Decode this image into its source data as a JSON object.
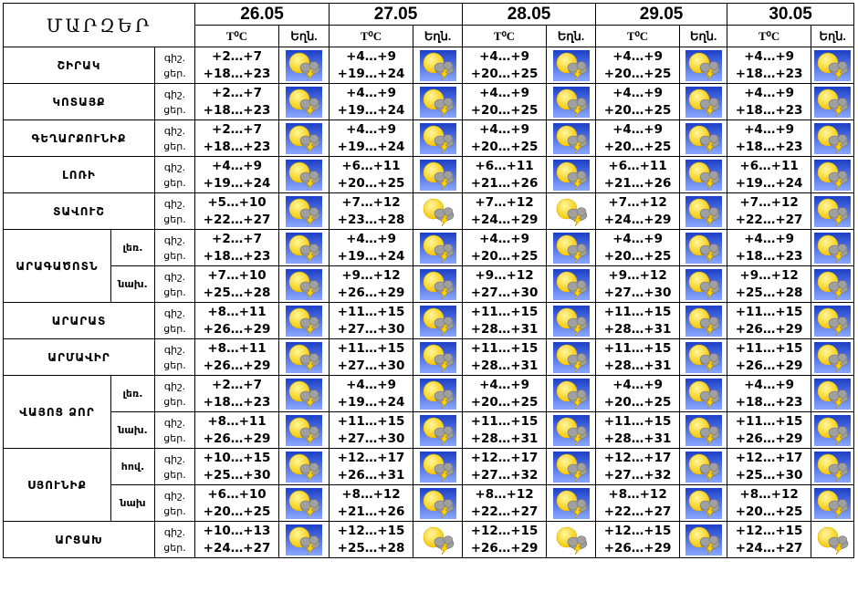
{
  "header": {
    "title": "ՄԱՐԶԵՐ",
    "dates": [
      "26.05",
      "27.05",
      "28.05",
      "29.05",
      "30.05"
    ],
    "temp_label": "T⁰C",
    "wx_label": "Եղն."
  },
  "rows": [
    {
      "region": "ՇԻՐԱԿ",
      "zone": "",
      "night": "գիշ.",
      "day": "ցեր.",
      "temps": [
        [
          "+2…+7",
          "+18…+23"
        ],
        [
          "+4…+9",
          "+19…+24"
        ],
        [
          "+4…+9",
          "+20…+25"
        ],
        [
          "+4…+9",
          "+20…+25"
        ],
        [
          "+4…+9",
          "+18…+23"
        ]
      ],
      "icons": [
        "partly-cloudy-thunder-icon",
        "thunderstorm-icon",
        "thunderstorm-icon",
        "thunderstorm-icon",
        "partly-cloudy-thunder-icon"
      ]
    },
    {
      "region": "ԿՈՏԱՅՔ",
      "zone": "",
      "night": "գիշ.",
      "day": "ցեր.",
      "temps": [
        [
          "+2…+7",
          "+18…+23"
        ],
        [
          "+4…+9",
          "+19…+24"
        ],
        [
          "+4…+9",
          "+20…+25"
        ],
        [
          "+4…+9",
          "+20…+25"
        ],
        [
          "+4…+9",
          "+18…+23"
        ]
      ],
      "icons": [
        "partly-cloudy-thunder-icon",
        "thunderstorm-icon",
        "thunderstorm-icon",
        "thunderstorm-icon",
        "partly-cloudy-thunder-icon"
      ]
    },
    {
      "region": "ԳԵՂԱՐՔՈՒՆԻՔ",
      "zone": "",
      "night": "գիշ.",
      "day": "ցեր.",
      "temps": [
        [
          "+2…+7",
          "+18…+23"
        ],
        [
          "+4…+9",
          "+19…+24"
        ],
        [
          "+4…+9",
          "+20…+25"
        ],
        [
          "+4…+9",
          "+20…+25"
        ],
        [
          "+4…+9",
          "+18…+23"
        ]
      ],
      "icons": [
        "partly-cloudy-thunder-icon",
        "thunderstorm-icon",
        "thunderstorm-icon",
        "thunderstorm-icon",
        "partly-cloudy-thunder-icon"
      ]
    },
    {
      "region": "ԼՈՌԻ",
      "zone": "",
      "night": "գիշ.",
      "day": "ցեր.",
      "temps": [
        [
          "+4…+9",
          "+19…+24"
        ],
        [
          "+6…+11",
          "+20…+25"
        ],
        [
          "+6…+11",
          "+21…+26"
        ],
        [
          "+6…+11",
          "+21…+26"
        ],
        [
          "+6…+11",
          "+19…+24"
        ]
      ],
      "icons": [
        "partly-cloudy-thunder-icon",
        "thunderstorm-icon",
        "thunderstorm-icon",
        "thunderstorm-icon",
        "partly-cloudy-thunder-icon"
      ]
    },
    {
      "region": "ՏԱՎՈՒՇ",
      "zone": "",
      "night": "գիշ.",
      "day": "ցեր.",
      "temps": [
        [
          "+5…+10",
          "+22…+27"
        ],
        [
          "+7…+12",
          "+23…+28"
        ],
        [
          "+7…+12",
          "+24…+29"
        ],
        [
          "+7…+12",
          "+24…+29"
        ],
        [
          "+7…+12",
          "+22…+27"
        ]
      ],
      "icons": [
        "partly-cloudy-thunder-icon",
        "partly-cloudy-thunder-white-icon",
        "partly-cloudy-thunder-white-icon",
        "thunderstorm-icon",
        "partly-cloudy-thunder-icon"
      ]
    },
    {
      "region": "ԱՐԱԳԱԾՈՏՆ",
      "zone": "լեռ.",
      "night": "գիշ.",
      "day": "ցեր.",
      "temps": [
        [
          "+2…+7",
          "+18…+23"
        ],
        [
          "+4…+9",
          "+19…+24"
        ],
        [
          "+4…+9",
          "+20…+25"
        ],
        [
          "+4…+9",
          "+20…+25"
        ],
        [
          "+4…+9",
          "+18…+23"
        ]
      ],
      "icons": [
        "partly-cloudy-thunder-icon",
        "thunderstorm-icon",
        "thunderstorm-icon",
        "thunderstorm-icon",
        "partly-cloudy-thunder-icon"
      ]
    },
    {
      "region": "",
      "zone": "նախ.",
      "night": "գիշ.",
      "day": "ցեր.",
      "temps": [
        [
          "+7…+10",
          "+25…+28"
        ],
        [
          "+9…+12",
          "+26…+29"
        ],
        [
          "+9…+12",
          "+27…+30"
        ],
        [
          "+9…+12",
          "+27…+30"
        ],
        [
          "+9…+12",
          "+25…+28"
        ]
      ],
      "icons": [
        "partly-cloudy-thunder-icon",
        "thunderstorm-icon",
        "thunderstorm-icon",
        "thunderstorm-icon",
        "partly-cloudy-thunder-icon"
      ]
    },
    {
      "region": "ԱՐԱՐԱՏ",
      "zone": "",
      "night": "գիշ.",
      "day": "ցեր.",
      "temps": [
        [
          "+8…+11",
          "+26…+29"
        ],
        [
          "+11…+15",
          "+27…+30"
        ],
        [
          "+11…+15",
          "+28…+31"
        ],
        [
          "+11…+15",
          "+28…+31"
        ],
        [
          "+11…+15",
          "+26…+29"
        ]
      ],
      "icons": [
        "partly-cloudy-thunder-icon",
        "thunderstorm-icon",
        "thunderstorm-icon",
        "thunderstorm-icon",
        "partly-cloudy-thunder-icon"
      ]
    },
    {
      "region": "ԱՐՄԱՎԻՐ",
      "zone": "",
      "night": "գիշ.",
      "day": "ցեր.",
      "temps": [
        [
          "+8…+11",
          "+26…+29"
        ],
        [
          "+11…+15",
          "+27…+30"
        ],
        [
          "+11…+15",
          "+28…+31"
        ],
        [
          "+11…+15",
          "+28…+31"
        ],
        [
          "+11…+15",
          "+26…+29"
        ]
      ],
      "icons": [
        "partly-cloudy-thunder-icon",
        "thunderstorm-icon",
        "thunderstorm-icon",
        "thunderstorm-icon",
        "partly-cloudy-thunder-icon"
      ]
    },
    {
      "region": "ՎԱՅՈՑ ՁՈՐ",
      "zone": "լեռ.",
      "night": "գիշ.",
      "day": "ցեր.",
      "temps": [
        [
          "+2…+7",
          "+18…+23"
        ],
        [
          "+4…+9",
          "+19…+24"
        ],
        [
          "+4…+9",
          "+20…+25"
        ],
        [
          "+4…+9",
          "+20…+25"
        ],
        [
          "+4…+9",
          "+18…+23"
        ]
      ],
      "icons": [
        "partly-cloudy-thunder-icon",
        "thunderstorm-icon",
        "thunderstorm-icon",
        "thunderstorm-icon",
        "partly-cloudy-thunder-icon"
      ]
    },
    {
      "region": "",
      "zone": "նախ.",
      "night": "գիշ.",
      "day": "ցեր.",
      "temps": [
        [
          "+8…+11",
          "+26…+29"
        ],
        [
          "+11…+15",
          "+27…+30"
        ],
        [
          "+11…+15",
          "+28…+31"
        ],
        [
          "+11…+15",
          "+28…+31"
        ],
        [
          "+11…+15",
          "+26…+29"
        ]
      ],
      "icons": [
        "partly-cloudy-thunder-icon",
        "thunderstorm-icon",
        "thunderstorm-icon",
        "thunderstorm-icon",
        "partly-cloudy-thunder-icon"
      ]
    },
    {
      "region": "ՍՅՈՒՆԻՔ",
      "zone": "հով.",
      "night": "գիշ.",
      "day": "ցեր.",
      "temps": [
        [
          "+10…+15",
          "+25…+30"
        ],
        [
          "+12…+17",
          "+26…+31"
        ],
        [
          "+12…+17",
          "+27…+32"
        ],
        [
          "+12…+17",
          "+27…+32"
        ],
        [
          "+12…+17",
          "+25…+30"
        ]
      ],
      "icons": [
        "partly-cloudy-thunder-icon",
        "thunderstorm-icon",
        "thunderstorm-icon",
        "thunderstorm-icon",
        "partly-cloudy-thunder-icon"
      ]
    },
    {
      "region": "",
      "zone": "նախ",
      "night": "գիշ.",
      "day": "ցեր.",
      "temps": [
        [
          "+6…+10",
          "+20…+25"
        ],
        [
          "+8…+12",
          "+21…+26"
        ],
        [
          "+8…+12",
          "+22…+27"
        ],
        [
          "+8…+12",
          "+22…+27"
        ],
        [
          "+8…+12",
          "+20…+25"
        ]
      ],
      "icons": [
        "partly-cloudy-thunder-icon",
        "thunderstorm-icon",
        "thunderstorm-icon",
        "thunderstorm-icon",
        "partly-cloudy-thunder-icon"
      ]
    },
    {
      "region": "ԱՐՑԱԽ",
      "zone": "",
      "night": "գիշ.",
      "day": "ցեր.",
      "temps": [
        [
          "+10…+13",
          "+24…+27"
        ],
        [
          "+12…+15",
          "+25…+28"
        ],
        [
          "+12…+15",
          "+26…+29"
        ],
        [
          "+12…+15",
          "+26…+29"
        ],
        [
          "+12…+15",
          "+24…+27"
        ]
      ],
      "icons": [
        "partly-cloudy-thunder-icon",
        "partly-cloudy-thunder-white-icon",
        "partly-cloudy-thunder-white-icon",
        "thunderstorm-icon",
        "partly-cloudy-thunder-white-icon"
      ]
    }
  ],
  "colors": {
    "sun": "#f5c800",
    "cloud": "#a0a0a0",
    "sky": "#3a5fd8",
    "bolt": "#ffd400"
  }
}
